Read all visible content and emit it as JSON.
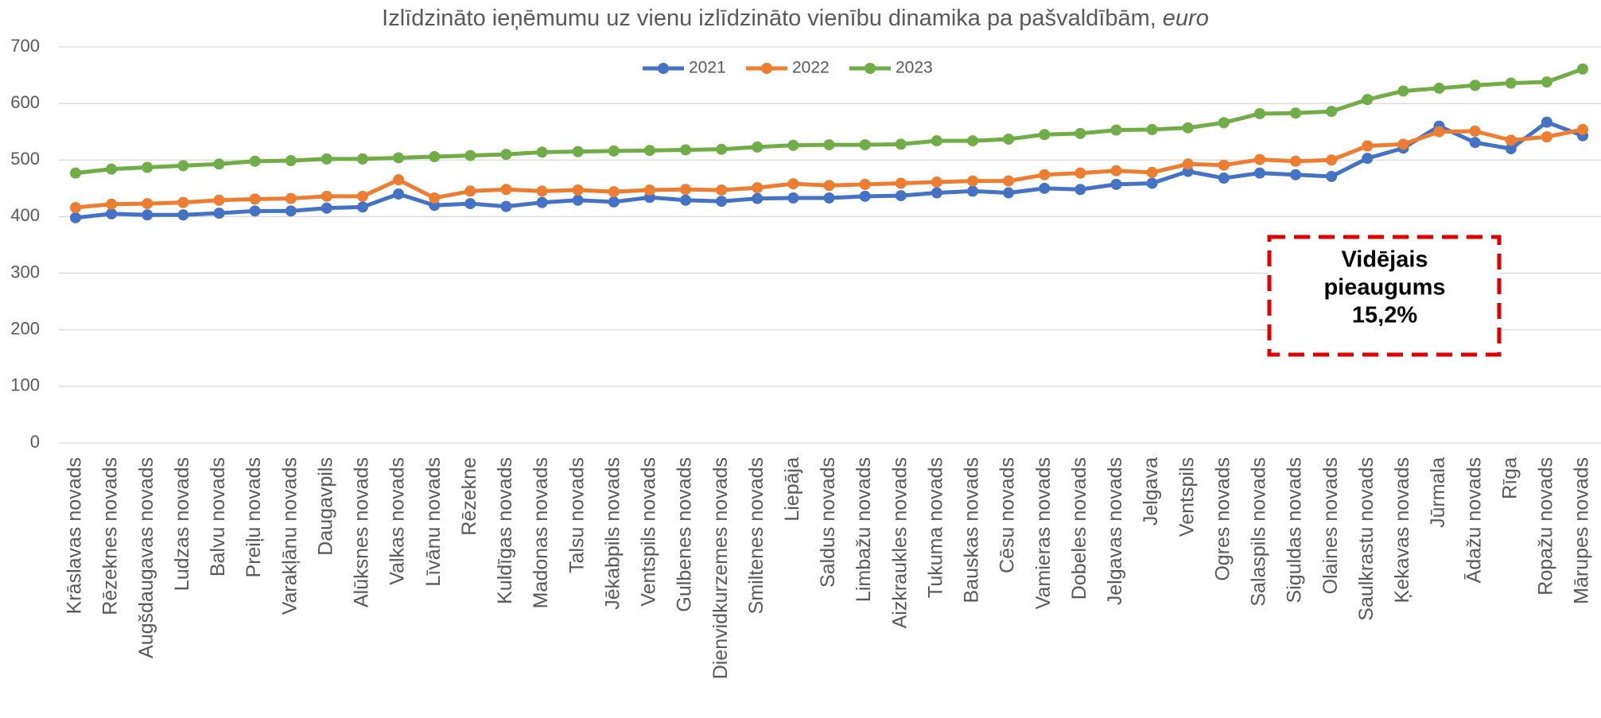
{
  "chart_data": {
    "type": "line",
    "title": "Izlīdzināto ieņēmumu uz vienu izlīdzināto vienību dinamika pa pašvaldībām,",
    "title_unit": "euro",
    "categories": [
      "Krāslavas novads",
      "Rēzeknes novads",
      "Augšdaugavas novads",
      "Ludzas novads",
      "Balvu novads",
      "Preiļu novads",
      "Varakļānu novads",
      "Daugavpils",
      "Alūksnes novads",
      "Valkas novads",
      "Līvānu novads",
      "Rēzekne",
      "Kuldīgas novads",
      "Madonas novads",
      "Talsu novads",
      "Jēkabpils novads",
      "Ventspils novads",
      "Gulbenes novads",
      "Dienvidkurzemes novads",
      "Smiltenes novads",
      "Liepāja",
      "Saldus novads",
      "Limbažu novads",
      "Aizkraukles novads",
      "Tukuma novads",
      "Bauskas novads",
      "Cēsu novads",
      "Vamieras novads",
      "Dobeles novads",
      "Jelgavas novads",
      "Jelgava",
      "Ventspils",
      "Ogres novads",
      "Salaspils novads",
      "Siguldas novads",
      "Olaines novads",
      "Saulkrastu novads",
      "Ķekavas novads",
      "Jūrmala",
      "Ādažu novads",
      "Rīga",
      "Ropažu novads",
      "Mārupes novads"
    ],
    "series": [
      {
        "name": "2021",
        "color": "#4472c4",
        "values": [
          398,
          405,
          403,
          403,
          406,
          410,
          410,
          415,
          417,
          440,
          420,
          423,
          418,
          425,
          429,
          426,
          434,
          429,
          427,
          432,
          433,
          433,
          436,
          437,
          442,
          445,
          442,
          450,
          448,
          457,
          459,
          480,
          468,
          477,
          474,
          471,
          503,
          521,
          560,
          531,
          520,
          567,
          543
        ]
      },
      {
        "name": "2022",
        "color": "#ed7d31",
        "values": [
          416,
          422,
          423,
          425,
          429,
          431,
          432,
          436,
          436,
          465,
          433,
          445,
          448,
          445,
          447,
          444,
          447,
          448,
          447,
          451,
          458,
          455,
          457,
          459,
          461,
          463,
          463,
          474,
          477,
          481,
          478,
          493,
          491,
          501,
          498,
          500,
          525,
          528,
          550,
          551,
          535,
          541,
          554
        ]
      },
      {
        "name": "2023",
        "color": "#70ad47",
        "values": [
          477,
          484,
          487,
          490,
          493,
          498,
          499,
          502,
          502,
          504,
          506,
          508,
          510,
          514,
          515,
          516,
          517,
          518,
          519,
          523,
          526,
          527,
          527,
          528,
          534,
          534,
          537,
          545,
          547,
          553,
          554,
          557,
          566,
          582,
          583,
          586,
          607,
          622,
          627,
          632,
          636,
          638,
          661
        ]
      }
    ],
    "ylim": [
      0,
      700
    ],
    "yticks": [
      0,
      100,
      200,
      300,
      400,
      500,
      600,
      700
    ],
    "grid": true,
    "legend": "top",
    "annotation": [
      "Vidējais",
      "pieaugums",
      "15,2%"
    ],
    "annotation_color": "#e00000"
  }
}
